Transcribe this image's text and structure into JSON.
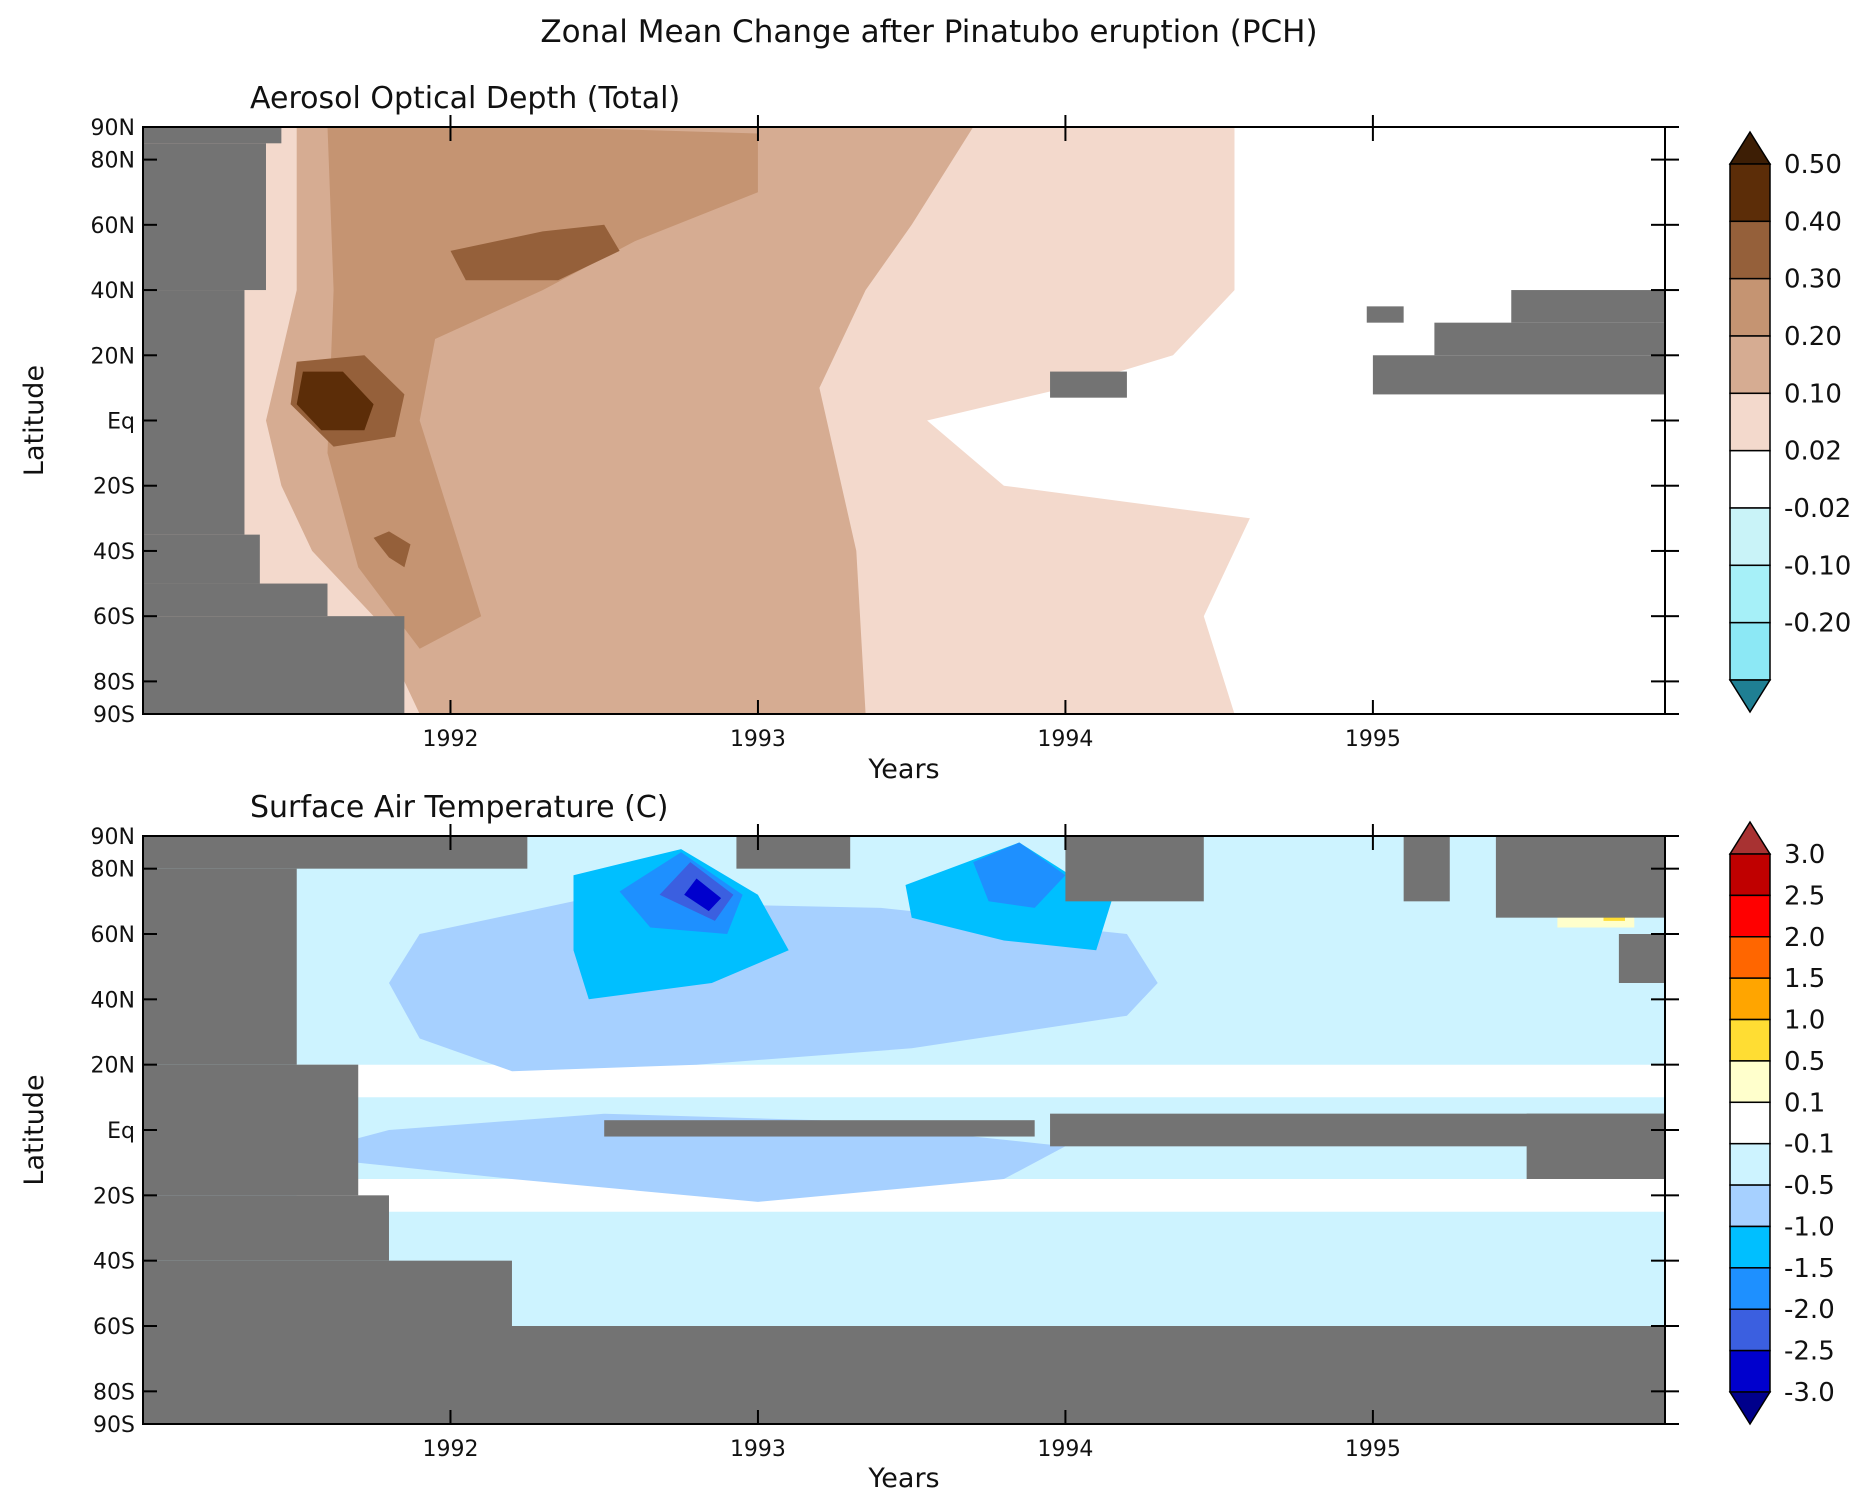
{
  "title": "Zonal Mean Change after Pinatubo eruption (PCH)",
  "colors": {
    "missing": "#737373",
    "frame": "#000000"
  },
  "chart_data": [
    {
      "type": "heatmap",
      "title": "Aerosol Optical Depth (Total)",
      "xlabel": "Years",
      "ylabel": "Latitude",
      "xlim": [
        1991.0,
        1995.95
      ],
      "ylim": [
        -90,
        90
      ],
      "x_ticks": [
        1992,
        1993,
        1994,
        1995
      ],
      "x_tick_labels": [
        "1992",
        "1993",
        "1994",
        "1995"
      ],
      "y_ticks": [
        -90,
        -80,
        -60,
        -40,
        -20,
        0,
        20,
        40,
        60,
        80,
        90
      ],
      "y_tick_labels": [
        "90S",
        "80S",
        "60S",
        "40S",
        "20S",
        "Eq",
        "20N",
        "40N",
        "60N",
        "80N",
        "90N"
      ],
      "colorbar": {
        "labels": [
          "0.50",
          "0.40",
          "0.30",
          "0.20",
          "0.10",
          "0.02",
          "-0.02",
          "-0.10",
          "-0.20"
        ],
        "colors": [
          "#5c2d08",
          "#95603a",
          "#c59472",
          "#d6ac92",
          "#f3d9cc",
          "#ffffff",
          "#c9f3f8",
          "#a6f0f8",
          "#8ce8f5"
        ],
        "over_color": "#3d1e05",
        "under_color": "#1f7f93"
      },
      "background_level": "0.02 to 0.10",
      "regions": [
        {
          "level": "0.10-0.20",
          "points": [
            [
              1991.5,
              90
            ],
            [
              1993.7,
              90
            ],
            [
              1993.5,
              60
            ],
            [
              1993.35,
              40
            ],
            [
              1993.2,
              10
            ],
            [
              1993.32,
              -40
            ],
            [
              1993.35,
              -90
            ],
            [
              1991.9,
              -90
            ],
            [
              1991.75,
              -60
            ],
            [
              1991.55,
              -40
            ],
            [
              1991.45,
              -20
            ],
            [
              1991.4,
              0
            ],
            [
              1991.45,
              20
            ],
            [
              1991.5,
              40
            ]
          ]
        },
        {
          "level": "0.20-0.30",
          "points": [
            [
              1991.6,
              90
            ],
            [
              1992.3,
              90
            ],
            [
              1993.0,
              88
            ],
            [
              1993.0,
              70
            ],
            [
              1992.6,
              55
            ],
            [
              1992.3,
              40
            ],
            [
              1991.95,
              25
            ],
            [
              1991.9,
              0
            ],
            [
              1992.0,
              -30
            ],
            [
              1992.1,
              -60
            ],
            [
              1991.9,
              -70
            ],
            [
              1991.7,
              -45
            ],
            [
              1991.6,
              -10
            ],
            [
              1991.62,
              40
            ]
          ]
        },
        {
          "level": "0.30-0.40",
          "points": [
            [
              1992.0,
              52
            ],
            [
              1992.3,
              58
            ],
            [
              1992.5,
              60
            ],
            [
              1992.55,
              52
            ],
            [
              1992.35,
              43
            ],
            [
              1992.05,
              43
            ]
          ]
        },
        {
          "level": "0.30-0.40",
          "points": [
            [
              1991.5,
              18
            ],
            [
              1991.72,
              20
            ],
            [
              1991.85,
              8
            ],
            [
              1991.82,
              -5
            ],
            [
              1991.62,
              -8
            ],
            [
              1991.48,
              5
            ]
          ]
        },
        {
          "level": "0.30-0.40",
          "points": [
            [
              1991.75,
              -36
            ],
            [
              1991.8,
              -42
            ],
            [
              1991.85,
              -45
            ],
            [
              1991.87,
              -38
            ],
            [
              1991.8,
              -34
            ]
          ]
        },
        {
          "level": "0.40-0.50",
          "points": [
            [
              1991.52,
              15
            ],
            [
              1991.65,
              15
            ],
            [
              1991.75,
              5
            ],
            [
              1991.72,
              -3
            ],
            [
              1991.58,
              -3
            ],
            [
              1991.5,
              5
            ]
          ]
        },
        {
          "level": "-0.02-0.02",
          "points": [
            [
              1994.55,
              90
            ],
            [
              1995.95,
              90
            ],
            [
              1995.95,
              -90
            ],
            [
              1994.55,
              -90
            ],
            [
              1994.45,
              -60
            ],
            [
              1994.6,
              -30
            ],
            [
              1994.2,
              -25
            ],
            [
              1993.8,
              -20
            ],
            [
              1993.55,
              0
            ],
            [
              1994.0,
              10
            ],
            [
              1994.35,
              20
            ],
            [
              1994.55,
              40
            ]
          ]
        }
      ],
      "missing": [
        {
          "x": [
            1991.0,
            1991.45
          ],
          "y": [
            85,
            90
          ]
        },
        {
          "x": [
            1991.0,
            1991.4
          ],
          "y": [
            40,
            85
          ]
        },
        {
          "x": [
            1991.0,
            1991.33
          ],
          "y": [
            -35,
            40
          ]
        },
        {
          "x": [
            1991.0,
            1991.38
          ],
          "y": [
            -50,
            -35
          ]
        },
        {
          "x": [
            1991.0,
            1991.6
          ],
          "y": [
            -60,
            -50
          ]
        },
        {
          "x": [
            1991.0,
            1991.85
          ],
          "y": [
            -90,
            -60
          ]
        },
        {
          "x": [
            1993.95,
            1994.2
          ],
          "y": [
            7,
            15
          ]
        },
        {
          "x": [
            1994.98,
            1995.1
          ],
          "y": [
            30,
            35
          ]
        },
        {
          "x": [
            1995.0,
            1995.95
          ],
          "y": [
            8,
            20
          ]
        },
        {
          "x": [
            1995.2,
            1995.95
          ],
          "y": [
            20,
            30
          ]
        },
        {
          "x": [
            1995.45,
            1995.95
          ],
          "y": [
            30,
            40
          ]
        }
      ]
    },
    {
      "type": "heatmap",
      "title": "Surface Air Temperature (C)",
      "xlabel": "Years",
      "ylabel": "Latitude",
      "xlim": [
        1991.0,
        1995.95
      ],
      "ylim": [
        -90,
        90
      ],
      "x_ticks": [
        1992,
        1993,
        1994,
        1995
      ],
      "x_tick_labels": [
        "1992",
        "1993",
        "1994",
        "1995"
      ],
      "y_ticks": [
        -90,
        -80,
        -60,
        -40,
        -20,
        0,
        20,
        40,
        60,
        80,
        90
      ],
      "y_tick_labels": [
        "90S",
        "80S",
        "60S",
        "40S",
        "20S",
        "Eq",
        "20N",
        "40N",
        "60N",
        "80N",
        "90N"
      ],
      "colorbar": {
        "labels": [
          "3.0",
          "2.5",
          "2.0",
          "1.5",
          "1.0",
          "0.5",
          "0.1",
          "-0.1",
          "-0.5",
          "-1.0",
          "-1.5",
          "-2.0",
          "-2.5",
          "-3.0"
        ],
        "colors": [
          "#c00000",
          "#ff0000",
          "#ff6600",
          "#ffa500",
          "#ffdd33",
          "#ffffcc",
          "#ffffff",
          "#cdf3ff",
          "#a6d0ff",
          "#00bfff",
          "#1e90ff",
          "#3b5fe0",
          "#0000cd"
        ],
        "over_color": "#a83232",
        "under_color": "#00008b"
      },
      "background_level": "-0.5 to -0.1",
      "regions": [
        {
          "level": "-0.1-0.1",
          "points": [
            [
              1991.5,
              20
            ],
            [
              1995.95,
              20
            ],
            [
              1995.95,
              10
            ],
            [
              1991.5,
              10
            ]
          ]
        },
        {
          "level": "-0.1-0.1",
          "points": [
            [
              1991.5,
              -15
            ],
            [
              1995.95,
              -15
            ],
            [
              1995.95,
              -25
            ],
            [
              1991.5,
              -25
            ]
          ]
        },
        {
          "level": "-1.0--0.5",
          "points": [
            [
              1991.9,
              60
            ],
            [
              1992.4,
              70
            ],
            [
              1993.4,
              68
            ],
            [
              1994.2,
              60
            ],
            [
              1994.3,
              45
            ],
            [
              1994.2,
              35
            ],
            [
              1993.5,
              25
            ],
            [
              1992.8,
              20
            ],
            [
              1992.2,
              18
            ],
            [
              1991.9,
              28
            ],
            [
              1991.8,
              45
            ]
          ]
        },
        {
          "level": "-1.0--0.5",
          "points": [
            [
              1992.5,
              5
            ],
            [
              1993.2,
              3
            ],
            [
              1994.0,
              -5
            ],
            [
              1993.8,
              -15
            ],
            [
              1993.0,
              -22
            ],
            [
              1992.2,
              -15
            ],
            [
              1991.7,
              -10
            ],
            [
              1991.6,
              -5
            ],
            [
              1991.8,
              0
            ]
          ]
        },
        {
          "level": "-1.5--1.0",
          "points": [
            [
              1992.4,
              78
            ],
            [
              1992.75,
              86
            ],
            [
              1993.0,
              72
            ],
            [
              1993.1,
              55
            ],
            [
              1992.85,
              45
            ],
            [
              1992.45,
              40
            ],
            [
              1992.4,
              55
            ]
          ]
        },
        {
          "level": "-1.5--1.0",
          "points": [
            [
              1993.48,
              75
            ],
            [
              1993.85,
              88
            ],
            [
              1994.15,
              70
            ],
            [
              1994.1,
              55
            ],
            [
              1993.8,
              58
            ],
            [
              1993.5,
              65
            ]
          ]
        },
        {
          "level": "-2.0--1.5",
          "points": [
            [
              1992.55,
              73
            ],
            [
              1992.75,
              85
            ],
            [
              1992.95,
              72
            ],
            [
              1992.9,
              60
            ],
            [
              1992.65,
              62
            ]
          ]
        },
        {
          "level": "-2.0--1.5",
          "points": [
            [
              1993.7,
              82
            ],
            [
              1993.85,
              88
            ],
            [
              1994.0,
              78
            ],
            [
              1993.9,
              68
            ],
            [
              1993.75,
              70
            ]
          ]
        },
        {
          "level": "-2.5--2.0",
          "points": [
            [
              1992.68,
              72
            ],
            [
              1992.78,
              82
            ],
            [
              1992.92,
              72
            ],
            [
              1992.86,
              64
            ]
          ]
        },
        {
          "level": "-3.0--2.5",
          "points": [
            [
              1992.76,
              72
            ],
            [
              1992.8,
              77
            ],
            [
              1992.88,
              71
            ],
            [
              1992.84,
              67
            ]
          ]
        },
        {
          "level": "0.1-0.5",
          "points": [
            [
              1995.6,
              75
            ],
            [
              1995.85,
              75
            ],
            [
              1995.85,
              62
            ],
            [
              1995.6,
              62
            ]
          ]
        },
        {
          "level": "0.5-1.0",
          "points": [
            [
              1995.75,
              74
            ],
            [
              1995.82,
              74
            ],
            [
              1995.82,
              64
            ],
            [
              1995.75,
              64
            ]
          ]
        }
      ],
      "missing": [
        {
          "x": [
            1991.0,
            1992.25
          ],
          "y": [
            80,
            90
          ]
        },
        {
          "x": [
            1991.0,
            1991.5
          ],
          "y": [
            20,
            80
          ]
        },
        {
          "x": [
            1991.0,
            1991.7
          ],
          "y": [
            -20,
            20
          ]
        },
        {
          "x": [
            1991.0,
            1991.8
          ],
          "y": [
            -40,
            -20
          ]
        },
        {
          "x": [
            1991.0,
            1992.2
          ],
          "y": [
            -60,
            -40
          ]
        },
        {
          "x": [
            1991.0,
            1995.95
          ],
          "y": [
            -90,
            -60
          ]
        },
        {
          "x": [
            1993.95,
            1995.95
          ],
          "y": [
            -5,
            5
          ]
        },
        {
          "x": [
            1992.5,
            1993.9
          ],
          "y": [
            -2,
            3
          ]
        },
        {
          "x": [
            1992.93,
            1993.3
          ],
          "y": [
            80,
            90
          ]
        },
        {
          "x": [
            1994.0,
            1994.45
          ],
          "y": [
            70,
            90
          ]
        },
        {
          "x": [
            1995.1,
            1995.25
          ],
          "y": [
            70,
            90
          ]
        },
        {
          "x": [
            1995.4,
            1995.95
          ],
          "y": [
            65,
            90
          ]
        },
        {
          "x": [
            1995.8,
            1995.95
          ],
          "y": [
            45,
            60
          ]
        },
        {
          "x": [
            1995.5,
            1995.95
          ],
          "y": [
            -15,
            5
          ]
        }
      ]
    }
  ]
}
